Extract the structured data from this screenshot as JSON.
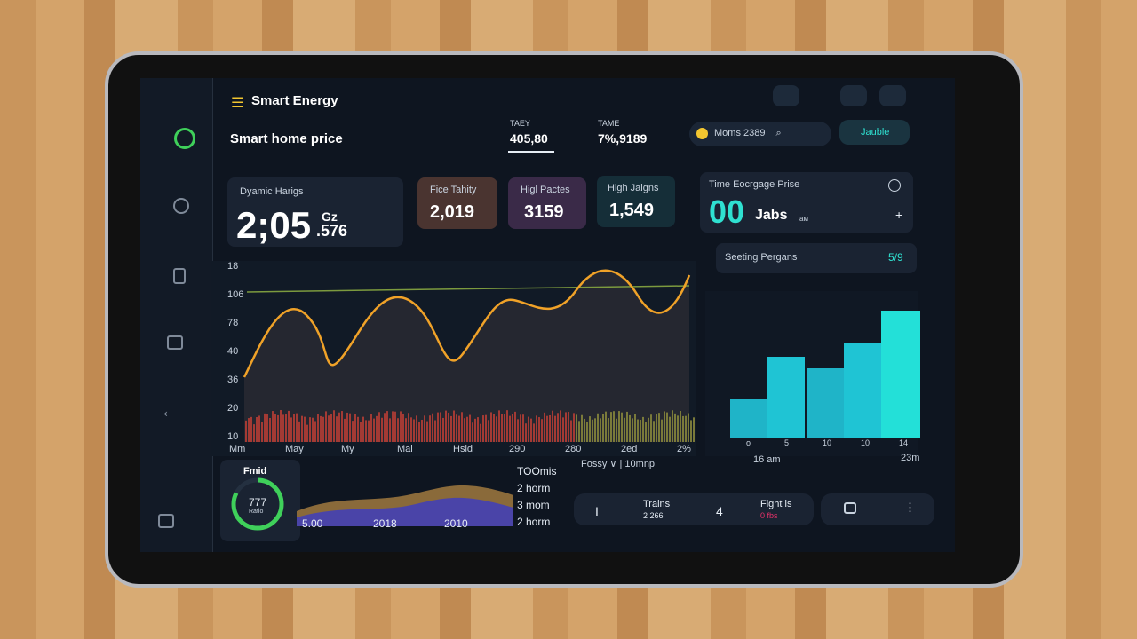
{
  "header": {
    "title": "Smart Energy",
    "subtitle": "Smart home price",
    "stats": [
      {
        "label": "TAEY",
        "value": "405,80"
      },
      {
        "label": "TAME",
        "value": "7%,9189"
      }
    ],
    "search": "Moms 2389",
    "button": "Jauble"
  },
  "cards": {
    "main": {
      "label": "Dyamic Harigs",
      "value": "2;05",
      "unit": "Gz",
      "sub": ".576"
    },
    "tiles": [
      {
        "label": "Fice Tahity",
        "value": "2,019"
      },
      {
        "label": "Higl Pactes",
        "value": "3159"
      },
      {
        "label": "High Jaigns",
        "value": "1,549"
      }
    ],
    "side": {
      "label": "Time Eocrgage Prise",
      "value": "00",
      "unit": "Jabs",
      "note": "aм"
    },
    "setting": {
      "label": "Seeting Pergans",
      "value": "5/9"
    }
  },
  "line_panel": {
    "y_labels": [
      "18",
      "106",
      "78",
      "40",
      "36",
      "20",
      "10"
    ],
    "x_labels": [
      "Mm",
      "May",
      "My",
      "Mai",
      "Hsid",
      "290",
      "280",
      "2ed",
      "2%"
    ]
  },
  "bar_panel": {
    "x_labels": [
      "o",
      "5",
      "10",
      "10",
      "14"
    ],
    "time_labels": [
      "16 am",
      "23m"
    ]
  },
  "bottom": {
    "gauge_title": "Fmid",
    "gauge_value": "777",
    "gauge_note": "Ratio",
    "area_labels": [
      "5.00",
      "2018",
      "2010"
    ],
    "list": [
      "TOOmis",
      "2 horm",
      "3 mom",
      "2 horm"
    ],
    "filter": "Fossy ∨ | 10mnp",
    "toolbar": [
      {
        "label": "I"
      },
      {
        "label": "Trains",
        "sub": "2 266"
      },
      {
        "label": "4"
      },
      {
        "label": "Fight ls",
        "sub": "0 fbs"
      }
    ]
  }
}
